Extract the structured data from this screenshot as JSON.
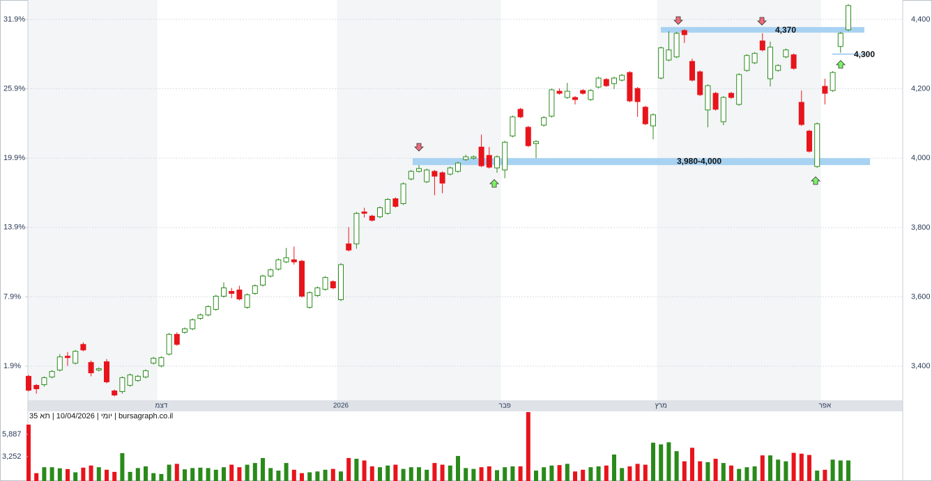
{
  "chart_data": [
    {
      "type": "candlestick",
      "caption": "יומי | 10/04/2026 | תא 35 | bursagraph.co.il",
      "categories": [
        null,
        null,
        null,
        null,
        null,
        null,
        null,
        null,
        null,
        null,
        null,
        null,
        null,
        null,
        null,
        null,
        null,
        "דצמ",
        null,
        null,
        null,
        null,
        null,
        null,
        null,
        null,
        null,
        null,
        null,
        null,
        null,
        null,
        null,
        null,
        null,
        null,
        null,
        null,
        null,
        null,
        "2026",
        null,
        null,
        null,
        null,
        null,
        null,
        null,
        null,
        null,
        null,
        null,
        null,
        null,
        null,
        null,
        null,
        null,
        null,
        null,
        null,
        "פבר",
        null,
        null,
        null,
        null,
        null,
        null,
        null,
        null,
        null,
        null,
        null,
        null,
        null,
        null,
        null,
        null,
        null,
        null,
        null,
        "מרץ",
        null,
        null,
        null,
        null,
        null,
        null,
        null,
        null,
        null,
        null,
        null,
        null,
        null,
        null,
        null,
        null,
        null,
        null,
        null,
        null,
        "אפר",
        null,
        null,
        null
      ],
      "open": [
        3371,
        3345,
        3347,
        3369,
        3389,
        3429,
        3409,
        3463,
        3411,
        3389,
        3413,
        3329,
        3327,
        3345,
        3359,
        3369,
        3409,
        3401,
        3435,
        3492,
        3498,
        3508,
        3538,
        3548,
        3564,
        3602,
        3616,
        3620,
        3570,
        3610,
        3634,
        3660,
        3680,
        3701,
        3707,
        3703,
        3570,
        3604,
        3622,
        3644,
        3592,
        3753,
        3753,
        3845,
        3833,
        3831,
        3841,
        3883,
        3869,
        3940,
        3962,
        3932,
        3962,
        3958,
        3954,
        3962,
        3996,
        4000,
        4032,
        4008,
        3972,
        3966,
        4064,
        4141,
        4089,
        4042,
        4095,
        4121,
        4193,
        4175,
        4175,
        4195,
        4169,
        4205,
        4227,
        4215,
        4225,
        4247,
        4201,
        4147,
        4093,
        4231,
        4283,
        4292,
        4368,
        4279,
        4249,
        4139,
        4187,
        4105,
        4187,
        4155,
        4253,
        4275,
        4338,
        4229,
        4253,
        4292,
        4298,
        4161,
        4078,
        3976,
        4207,
        4195,
        4322,
        4370
      ],
      "high": [
        3375,
        3349,
        3371,
        3389,
        3435,
        3441,
        3447,
        3469,
        3417,
        3397,
        3421,
        3333,
        3371,
        3379,
        3375,
        3391,
        3427,
        3429,
        3496,
        3498,
        3512,
        3538,
        3552,
        3576,
        3606,
        3642,
        3626,
        3632,
        3610,
        3636,
        3664,
        3682,
        3711,
        3741,
        3745,
        3707,
        3616,
        3630,
        3660,
        3648,
        3697,
        3801,
        3845,
        3857,
        3837,
        3861,
        3885,
        3887,
        3930,
        3966,
        3980,
        3970,
        3966,
        3962,
        3976,
        3990,
        4010,
        4008,
        4068,
        4032,
        4008,
        4050,
        4123,
        4145,
        4093,
        4052,
        4121,
        4201,
        4201,
        4217,
        4179,
        4199,
        4199,
        4235,
        4231,
        4235,
        4243,
        4251,
        4205,
        4151,
        4129,
        4322,
        4366,
        4364,
        4372,
        4287,
        4253,
        4213,
        4191,
        4179,
        4191,
        4245,
        4300,
        4306,
        4360,
        4336,
        4271,
        4316,
        4302,
        4195,
        4082,
        4103,
        4229,
        4251,
        4364,
        4444
      ],
      "low": [
        3327,
        3321,
        3341,
        3365,
        3385,
        3401,
        3405,
        3443,
        3371,
        3385,
        3351,
        3313,
        3321,
        3341,
        3355,
        3365,
        3405,
        3397,
        3431,
        3459,
        3494,
        3504,
        3534,
        3544,
        3560,
        3598,
        3596,
        3590,
        3566,
        3606,
        3630,
        3656,
        3676,
        3697,
        3693,
        3598,
        3566,
        3600,
        3618,
        3622,
        3588,
        3731,
        3739,
        3829,
        3817,
        3827,
        3837,
        3857,
        3865,
        3936,
        3958,
        3928,
        3893,
        3899,
        3950,
        3958,
        3992,
        3996,
        3974,
        3970,
        3958,
        3942,
        4060,
        4115,
        4032,
        4000,
        4091,
        4117,
        4183,
        4171,
        4155,
        4183,
        4165,
        4201,
        4205,
        4199,
        4221,
        4161,
        4119,
        4095,
        4054,
        4227,
        4279,
        4288,
        4332,
        4221,
        4179,
        4089,
        4137,
        4095,
        4171,
        4151,
        4249,
        4271,
        4308,
        4207,
        4249,
        4288,
        4255,
        4093,
        4016,
        3972,
        4155,
        4191,
        4304,
        4366
      ],
      "close": [
        3331,
        3335,
        3367,
        3385,
        3427,
        3425,
        3443,
        3447,
        3381,
        3393,
        3355,
        3317,
        3367,
        3375,
        3371,
        3387,
        3423,
        3425,
        3492,
        3463,
        3508,
        3534,
        3548,
        3572,
        3602,
        3626,
        3610,
        3594,
        3606,
        3632,
        3660,
        3678,
        3707,
        3713,
        3701,
        3602,
        3612,
        3626,
        3656,
        3626,
        3693,
        3735,
        3841,
        3841,
        3821,
        3857,
        3881,
        3861,
        3926,
        3962,
        3970,
        3966,
        3948,
        3928,
        3972,
        3986,
        4004,
        4004,
        3978,
        3974,
        4004,
        4046,
        4119,
        4119,
        4036,
        4048,
        4117,
        4197,
        4187,
        4193,
        4169,
        4187,
        4195,
        4231,
        4209,
        4231,
        4239,
        4165,
        4163,
        4099,
        4125,
        4318,
        4312,
        4360,
        4356,
        4225,
        4183,
        4209,
        4141,
        4175,
        4175,
        4241,
        4296,
        4302,
        4312,
        4320,
        4267,
        4312,
        4259,
        4097,
        4020,
        4099,
        4187,
        4247,
        4360,
        4440
      ],
      "up_color": "#2a8a1a",
      "down_color": "#e8141b",
      "ylim": [
        3302,
        4456
      ],
      "yticks": [
        {
          "value": 3400,
          "label": "3,400"
        },
        {
          "value": 3600,
          "label": "3,600"
        },
        {
          "value": 3800,
          "label": "3,800"
        },
        {
          "value": 4000,
          "label": "4,000"
        },
        {
          "value": 4200,
          "label": "4,200"
        },
        {
          "value": 4400,
          "label": "4,400"
        }
      ],
      "y2lim": [
        -1.05,
        33.59
      ],
      "y2ticks": [
        {
          "value": 1.9,
          "label": "1.9%"
        },
        {
          "value": 7.9,
          "label": "7.9%"
        },
        {
          "value": 13.9,
          "label": "13.9%"
        },
        {
          "value": 19.9,
          "label": "19.9%"
        },
        {
          "value": 25.9,
          "label": "25.9%"
        },
        {
          "value": 31.9,
          "label": "31.9%"
        }
      ],
      "grid": true,
      "annotations": [
        {
          "label": "4,370",
          "value": 4370
        },
        {
          "label": "4,300",
          "value": 4300
        },
        {
          "label": "3,980-4,000",
          "values": [
            3980,
            4000
          ]
        }
      ],
      "annotation_color": "#a8d2f2"
    },
    {
      "type": "bar",
      "values": [
        7040,
        1300,
        2000,
        2000,
        1870,
        1780,
        1400,
        1950,
        2200,
        2000,
        1700,
        1450,
        3660,
        1450,
        1900,
        2100,
        1300,
        1200,
        2300,
        2400,
        1750,
        1900,
        1950,
        1900,
        1700,
        2000,
        2300,
        2000,
        2300,
        2500,
        3090,
        1900,
        1600,
        2500,
        1700,
        1300,
        1400,
        1500,
        1700,
        1800,
        1500,
        3090,
        3000,
        2800,
        2100,
        2000,
        2200,
        2300,
        1800,
        2000,
        2000,
        1700,
        2500,
        2300,
        2200,
        3330,
        1900,
        1800,
        2000,
        2100,
        1650,
        2000,
        2100,
        2100,
        8520,
        1600,
        2000,
        2200,
        2250,
        2400,
        1500,
        1700,
        2000,
        2100,
        2200,
        3500,
        1900,
        2100,
        2400,
        2300,
        4900,
        4700,
        4950,
        3900,
        2700,
        4300,
        2700,
        2600,
        3000,
        2500,
        2200,
        1800,
        2000,
        2100,
        3400,
        3400,
        2900,
        2700,
        3700,
        3600,
        3450,
        1600,
        1700,
        2900,
        2800,
        2800
      ],
      "ylim": [
        0,
        8520
      ],
      "yticks": [
        {
          "value": 3252,
          "label": "3,252"
        },
        {
          "value": 5887,
          "label": "5,887"
        }
      ]
    }
  ]
}
